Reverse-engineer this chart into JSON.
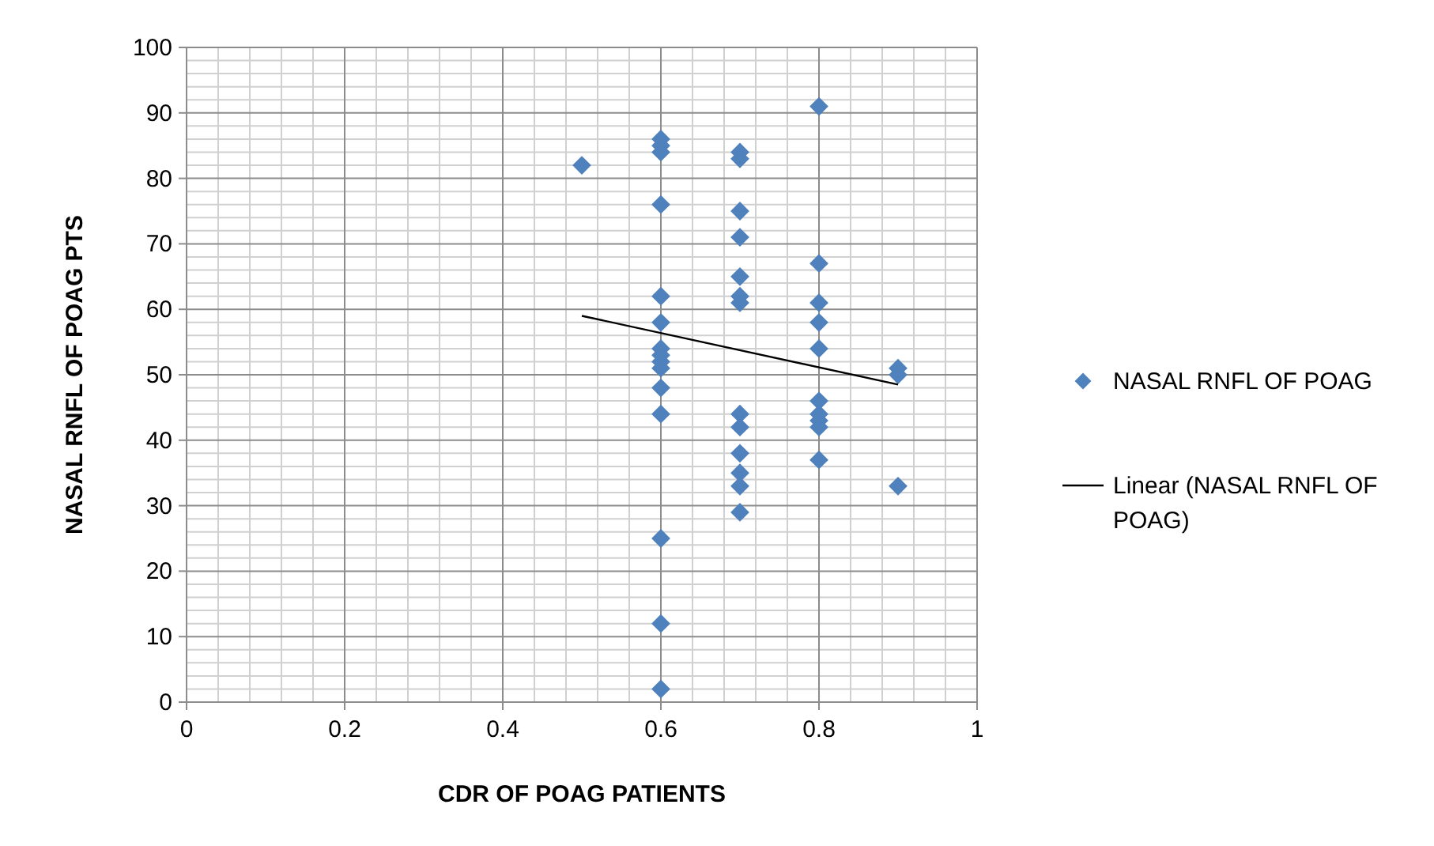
{
  "chart_data": {
    "type": "scatter",
    "xlabel": "CDR OF POAG PATIENTS",
    "ylabel": "NASAL RNFL OF POAG PTS",
    "xlim": [
      0,
      1
    ],
    "xticks": [
      0,
      0.2,
      0.4,
      0.6,
      0.8,
      1
    ],
    "ylim": [
      0,
      100
    ],
    "yticks": [
      0,
      10,
      20,
      30,
      40,
      50,
      60,
      70,
      80,
      90,
      100
    ],
    "grid": true,
    "legend": "right",
    "marker": "diamond",
    "series": [
      {
        "name": "NASAL RNFL OF POAG",
        "color": "#4f81bd",
        "x": [
          0.5,
          0.6,
          0.6,
          0.6,
          0.6,
          0.6,
          0.6,
          0.6,
          0.6,
          0.6,
          0.6,
          0.6,
          0.6,
          0.6,
          0.6,
          0.6,
          0.7,
          0.7,
          0.7,
          0.7,
          0.7,
          0.7,
          0.7,
          0.7,
          0.7,
          0.7,
          0.7,
          0.7,
          0.7,
          0.8,
          0.8,
          0.8,
          0.8,
          0.8,
          0.8,
          0.8,
          0.8,
          0.8,
          0.8,
          0.9,
          0.9,
          0.9
        ],
        "values": [
          82,
          86,
          85,
          84,
          76,
          62,
          58,
          54,
          53,
          52,
          51,
          48,
          44,
          25,
          12,
          2,
          84,
          83,
          75,
          71,
          65,
          62,
          61,
          44,
          42,
          38,
          35,
          33,
          29,
          91,
          67,
          61,
          58,
          54,
          46,
          44,
          43,
          42,
          37,
          51,
          50,
          33
        ]
      },
      {
        "name": "Linear (NASAL RNFL OF POAG)",
        "type": "line",
        "color": "#000000",
        "marker": "none",
        "line_style": "solid",
        "x": [
          0.5,
          0.9
        ],
        "values": [
          59,
          48.5
        ]
      }
    ]
  }
}
